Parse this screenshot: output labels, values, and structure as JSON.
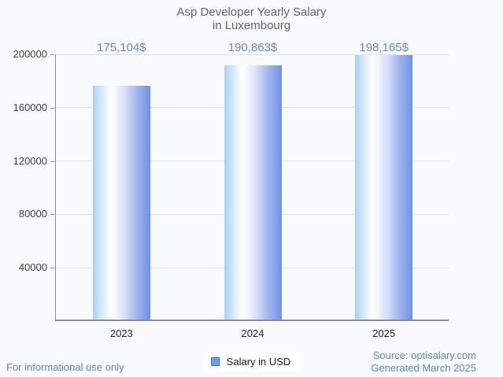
{
  "title": {
    "line1": "Asp Developer Yearly Salary",
    "line2": "in Luxembourg"
  },
  "chart_data": {
    "type": "bar",
    "categories": [
      "2023",
      "2024",
      "2025"
    ],
    "series": [
      {
        "name": "Salary in USD",
        "values": [
          175104,
          190863,
          198165
        ]
      }
    ],
    "value_labels": [
      "175,104$",
      "190,863$",
      "198,165$"
    ],
    "title": "Asp Developer Yearly Salary in Luxembourg",
    "xlabel": "",
    "ylabel": "",
    "ylim": [
      0,
      200000
    ],
    "y_ticks": [
      40000,
      80000,
      120000,
      160000,
      200000
    ],
    "y_tick_labels": [
      "40000",
      "80000",
      "120000",
      "160000",
      "200000"
    ],
    "grid": "horizontal-major",
    "legend_position": "bottom"
  },
  "legend": {
    "label": "Salary in USD"
  },
  "footer": {
    "left": "For informational use only",
    "source": "Source: optisalary.com",
    "generated": "Generated March 2025"
  },
  "colors": {
    "background": "#f9fafd",
    "title_text": "#5f6368",
    "axis_line": "#8b8b8b",
    "gridline": "#e1e2e6",
    "tick_label": "#3c4043",
    "category_label": "#1f1f1f",
    "value_label_text": "#6286d6",
    "footer_text": "#5d83d8",
    "bar_gradient_left": "#a9d1f7",
    "bar_gradient_highlight": "#ffffff",
    "bar_gradient_mid": "#d4dcf6",
    "bar_gradient_right": "#6d92e9",
    "legend_swatch_fill": "#6d9eeb",
    "legend_swatch_border": "#3f73d3"
  }
}
